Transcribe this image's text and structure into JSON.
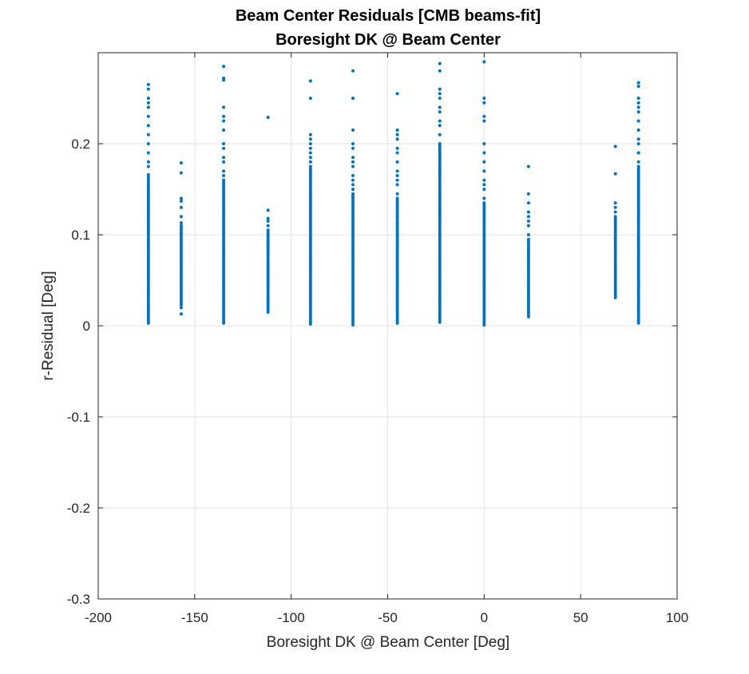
{
  "chart_data": {
    "type": "scatter",
    "title": "Beam Center Residuals [CMB beams-fit]",
    "subtitle": "Boresight DK @ Beam Center",
    "xlabel": "Boresight DK @ Beam Center [Deg]",
    "ylabel": "r-Residual [Deg]",
    "xlim": [
      -200,
      100
    ],
    "ylim": [
      -0.3,
      0.3
    ],
    "xticks": [
      -200,
      -150,
      -100,
      -50,
      0,
      50,
      100
    ],
    "xtick_labels": [
      "-200",
      "-150",
      "-100",
      "-50",
      "0",
      "50",
      "100"
    ],
    "yticks": [
      -0.3,
      -0.2,
      -0.1,
      0,
      0.1,
      0.2
    ],
    "ytick_labels": [
      "-0.3",
      "-0.2",
      "-0.1",
      "0",
      "0.1",
      "0.2"
    ],
    "grid": true,
    "marker_color": "#0072BD",
    "series": [
      {
        "groups": [
          {
            "x": -174,
            "dense": [
              0.003,
              0.163
            ],
            "extra": [
              0.166,
              0.175,
              0.18,
              0.19,
              0.2,
              0.21,
              0.22,
              0.23,
              0.24,
              0.245,
              0.25,
              0.26,
              0.265
            ]
          },
          {
            "x": -157,
            "dense": [
              0.023,
              0.11
            ],
            "extra": [
              0.013,
              0.02,
              0.113,
              0.12,
              0.13,
              0.137,
              0.14,
              0.168,
              0.179
            ]
          },
          {
            "x": -135,
            "dense": [
              0.003,
              0.16
            ],
            "extra": [
              0.165,
              0.17,
              0.18,
              0.185,
              0.195,
              0.2,
              0.215,
              0.225,
              0.23,
              0.24,
              0.27,
              0.272,
              0.285
            ]
          },
          {
            "x": -112,
            "dense": [
              0.015,
              0.105
            ],
            "extra": [
              0.11,
              0.115,
              0.118,
              0.127,
              0.229
            ]
          },
          {
            "x": -90,
            "dense": [
              0.002,
              0.175
            ],
            "extra": [
              0.18,
              0.185,
              0.19,
              0.195,
              0.2,
              0.205,
              0.21,
              0.25,
              0.269
            ]
          },
          {
            "x": -68,
            "dense": [
              0.001,
              0.145
            ],
            "extra": [
              0.15,
              0.155,
              0.16,
              0.165,
              0.175,
              0.18,
              0.185,
              0.195,
              0.2,
              0.215,
              0.25,
              0.28
            ]
          },
          {
            "x": -45,
            "dense": [
              0.003,
              0.14
            ],
            "extra": [
              0.145,
              0.155,
              0.16,
              0.165,
              0.17,
              0.18,
              0.19,
              0.195,
              0.205,
              0.21,
              0.215,
              0.255
            ]
          },
          {
            "x": -23,
            "dense": [
              0.004,
              0.2
            ],
            "extra": [
              0.21,
              0.22,
              0.225,
              0.235,
              0.24,
              0.25,
              0.255,
              0.26,
              0.28,
              0.288
            ]
          },
          {
            "x": 0,
            "dense": [
              0.001,
              0.135
            ],
            "extra": [
              0.14,
              0.15,
              0.155,
              0.16,
              0.17,
              0.18,
              0.19,
              0.2,
              0.225,
              0.23,
              0.245,
              0.25,
              0.29
            ]
          },
          {
            "x": 23,
            "dense": [
              0.01,
              0.095
            ],
            "extra": [
              0.1,
              0.11,
              0.115,
              0.12,
              0.125,
              0.135,
              0.145,
              0.175
            ]
          },
          {
            "x": 68,
            "dense": [
              0.031,
              0.12
            ],
            "extra": [
              0.125,
              0.13,
              0.135,
              0.167,
              0.197
            ]
          },
          {
            "x": 80,
            "dense": [
              0.003,
              0.175
            ],
            "extra": [
              0.18,
              0.19,
              0.2,
              0.205,
              0.215,
              0.225,
              0.235,
              0.24,
              0.245,
              0.25,
              0.263,
              0.267
            ]
          }
        ]
      }
    ]
  }
}
